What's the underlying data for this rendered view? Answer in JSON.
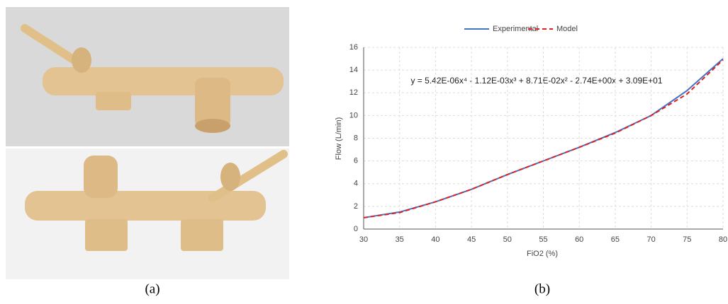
{
  "panel_labels": [
    "(a)",
    "(b)"
  ],
  "chart_data": {
    "type": "line",
    "annotation": "y = 5.42E-06x⁴ - 1.12E-03x³ + 8.71E-02x² - 2.74E+00x + 3.09E+01",
    "x_label": "FiO2 (%)",
    "y_label": "Flow (L/min)",
    "x": [
      30,
      35,
      40,
      45,
      50,
      55,
      60,
      65,
      70,
      75,
      80
    ],
    "series": [
      {
        "name": "Experimental",
        "color": "#4472c4",
        "dashed": false,
        "values": [
          1.0,
          1.5,
          2.4,
          3.5,
          4.8,
          6.0,
          7.2,
          8.5,
          10.0,
          12.2,
          15.0
        ]
      },
      {
        "name": "Model",
        "color": "#e02020",
        "dashed": true,
        "values": [
          1.0,
          1.45,
          2.4,
          3.5,
          4.8,
          6.0,
          7.2,
          8.45,
          10.0,
          11.9,
          14.9
        ]
      }
    ],
    "xlim": [
      30,
      80
    ],
    "xticks": [
      30,
      35,
      40,
      45,
      50,
      55,
      60,
      65,
      70,
      75,
      80
    ],
    "ylim": [
      0,
      16
    ],
    "yticks": [
      0,
      2,
      4,
      6,
      8,
      10,
      12,
      14,
      16
    ],
    "grid": true,
    "legend": "top"
  }
}
